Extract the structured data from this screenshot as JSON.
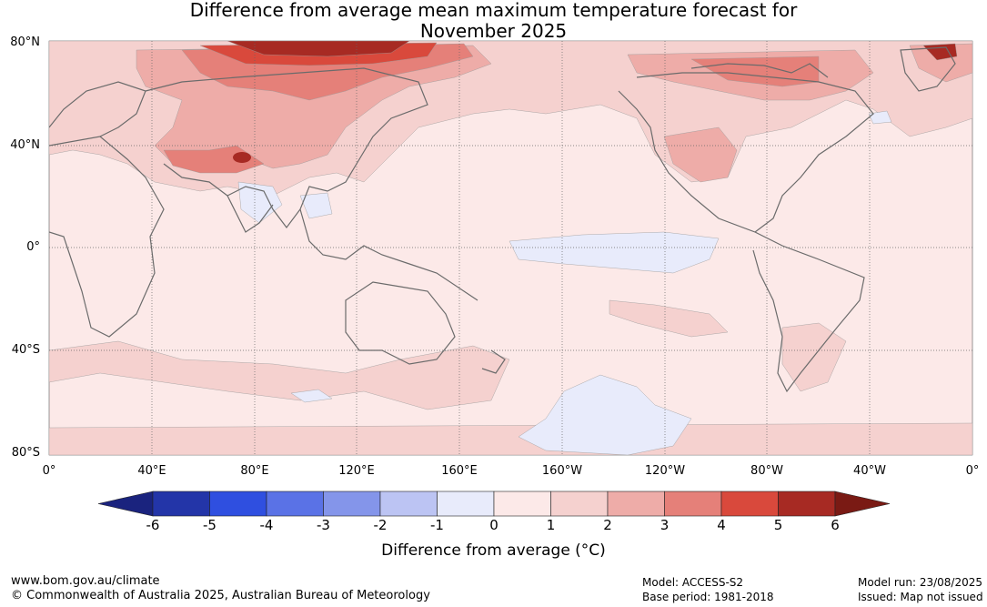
{
  "title_line1": "Difference from average mean maximum temperature forecast for",
  "title_line2": "November 2025",
  "lat_labels": [
    "80°N",
    "40°N",
    "0°",
    "40°S",
    "80°S"
  ],
  "lon_labels": [
    "0°",
    "40°E",
    "80°E",
    "120°E",
    "160°E",
    "160°W",
    "120°W",
    "80°W",
    "40°W",
    "0°"
  ],
  "colorbar": {
    "label": "Difference from average (°C)",
    "ticks": [
      "-6",
      "-5",
      "-4",
      "-3",
      "-2",
      "-1",
      "0",
      "1",
      "2",
      "3",
      "4",
      "5",
      "6"
    ],
    "low_end_color": "#1a237e",
    "high_end_color": "#7a1a14",
    "colors": [
      "#2335a8",
      "#2f4fe0",
      "#5a72e6",
      "#8495ea",
      "#bcc4f3",
      "#e8ebfb",
      "#fce9e8",
      "#f5d1cf",
      "#eeaca8",
      "#e58079",
      "#d9493c",
      "#a72a23"
    ]
  },
  "footer": {
    "url": "www.bom.gov.au/climate",
    "copyright": "© Commonwealth of Australia 2025, Australian Bureau of Meteorology",
    "model": "Model: ACCESS-S2",
    "base_period": "Base period: 1981-2018",
    "model_run": "Model run: 23/08/2025",
    "issued": "Issued: Map not issued"
  }
}
